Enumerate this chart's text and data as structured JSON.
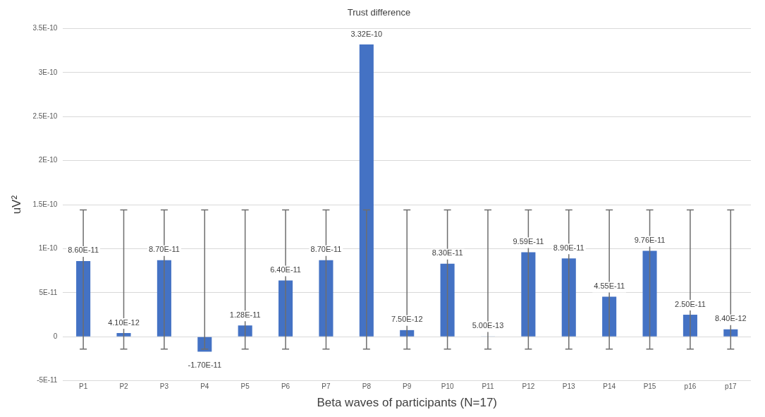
{
  "chart_data": {
    "type": "bar",
    "title": "Trust difference",
    "xlabel": "Beta waves of participants (N=17)",
    "ylabel": "uV²",
    "categories": [
      "P1",
      "P2",
      "P3",
      "P4",
      "P5",
      "P6",
      "P7",
      "P8",
      "P9",
      "P10",
      "P11",
      "P12",
      "P13",
      "P14",
      "P15",
      "p16",
      "p17"
    ],
    "values": [
      8.6e-11,
      4.1e-12,
      8.7e-11,
      -1.7e-11,
      1.28e-11,
      6.4e-11,
      8.7e-11,
      3.32e-10,
      7.5e-12,
      8.3e-11,
      5e-13,
      9.59e-11,
      8.9e-11,
      4.55e-11,
      9.76e-11,
      2.5e-11,
      8.4e-12
    ],
    "value_labels": [
      "8.60E-11",
      "4.10E-12",
      "8.70E-11",
      "-1.70E-11",
      "1.28E-11",
      "6.40E-11",
      "8.70E-11",
      "3.32E-10",
      "7.50E-12",
      "8.30E-11",
      "5.00E-13",
      "9.59E-11",
      "8.90E-11",
      "4.55E-11",
      "9.76E-11",
      "2.50E-11",
      "8.40E-12"
    ],
    "errors": [
      [
        -1.4e-11,
        1.44e-10
      ],
      [
        -1.4e-11,
        1.44e-10
      ],
      [
        -1.4e-11,
        1.44e-10
      ],
      [
        -1.4e-11,
        1.44e-10
      ],
      [
        -1.4e-11,
        1.44e-10
      ],
      [
        -1.4e-11,
        1.44e-10
      ],
      [
        -1.4e-11,
        1.44e-10
      ],
      [
        -1.4e-11,
        1.44e-10
      ],
      [
        -1.4e-11,
        1.44e-10
      ],
      [
        -1.4e-11,
        1.44e-10
      ],
      [
        -1.4e-11,
        1.44e-10
      ],
      [
        -1.4e-11,
        1.44e-10
      ],
      [
        -1.4e-11,
        1.44e-10
      ],
      [
        -1.4e-11,
        1.44e-10
      ],
      [
        -1.4e-11,
        1.44e-10
      ],
      [
        -1.4e-11,
        1.44e-10
      ],
      [
        -1.4e-11,
        1.44e-10
      ]
    ],
    "color": "#4472c4",
    "ylim": [
      -5e-11,
      3.5e-10
    ],
    "yticks": [
      {
        "value": -5e-11,
        "label": "-5E-11"
      },
      {
        "value": 0,
        "label": "0"
      },
      {
        "value": 5e-11,
        "label": "5E-11"
      },
      {
        "value": 1e-10,
        "label": "1E-10"
      },
      {
        "value": 1.5e-10,
        "label": "1.5E-10"
      },
      {
        "value": 2e-10,
        "label": "2E-10"
      },
      {
        "value": 2.5e-10,
        "label": "2.5E-10"
      },
      {
        "value": 3e-10,
        "label": "3E-10"
      },
      {
        "value": 3.5e-10,
        "label": "3.5E-10"
      }
    ],
    "grid": "y",
    "legend": false
  }
}
